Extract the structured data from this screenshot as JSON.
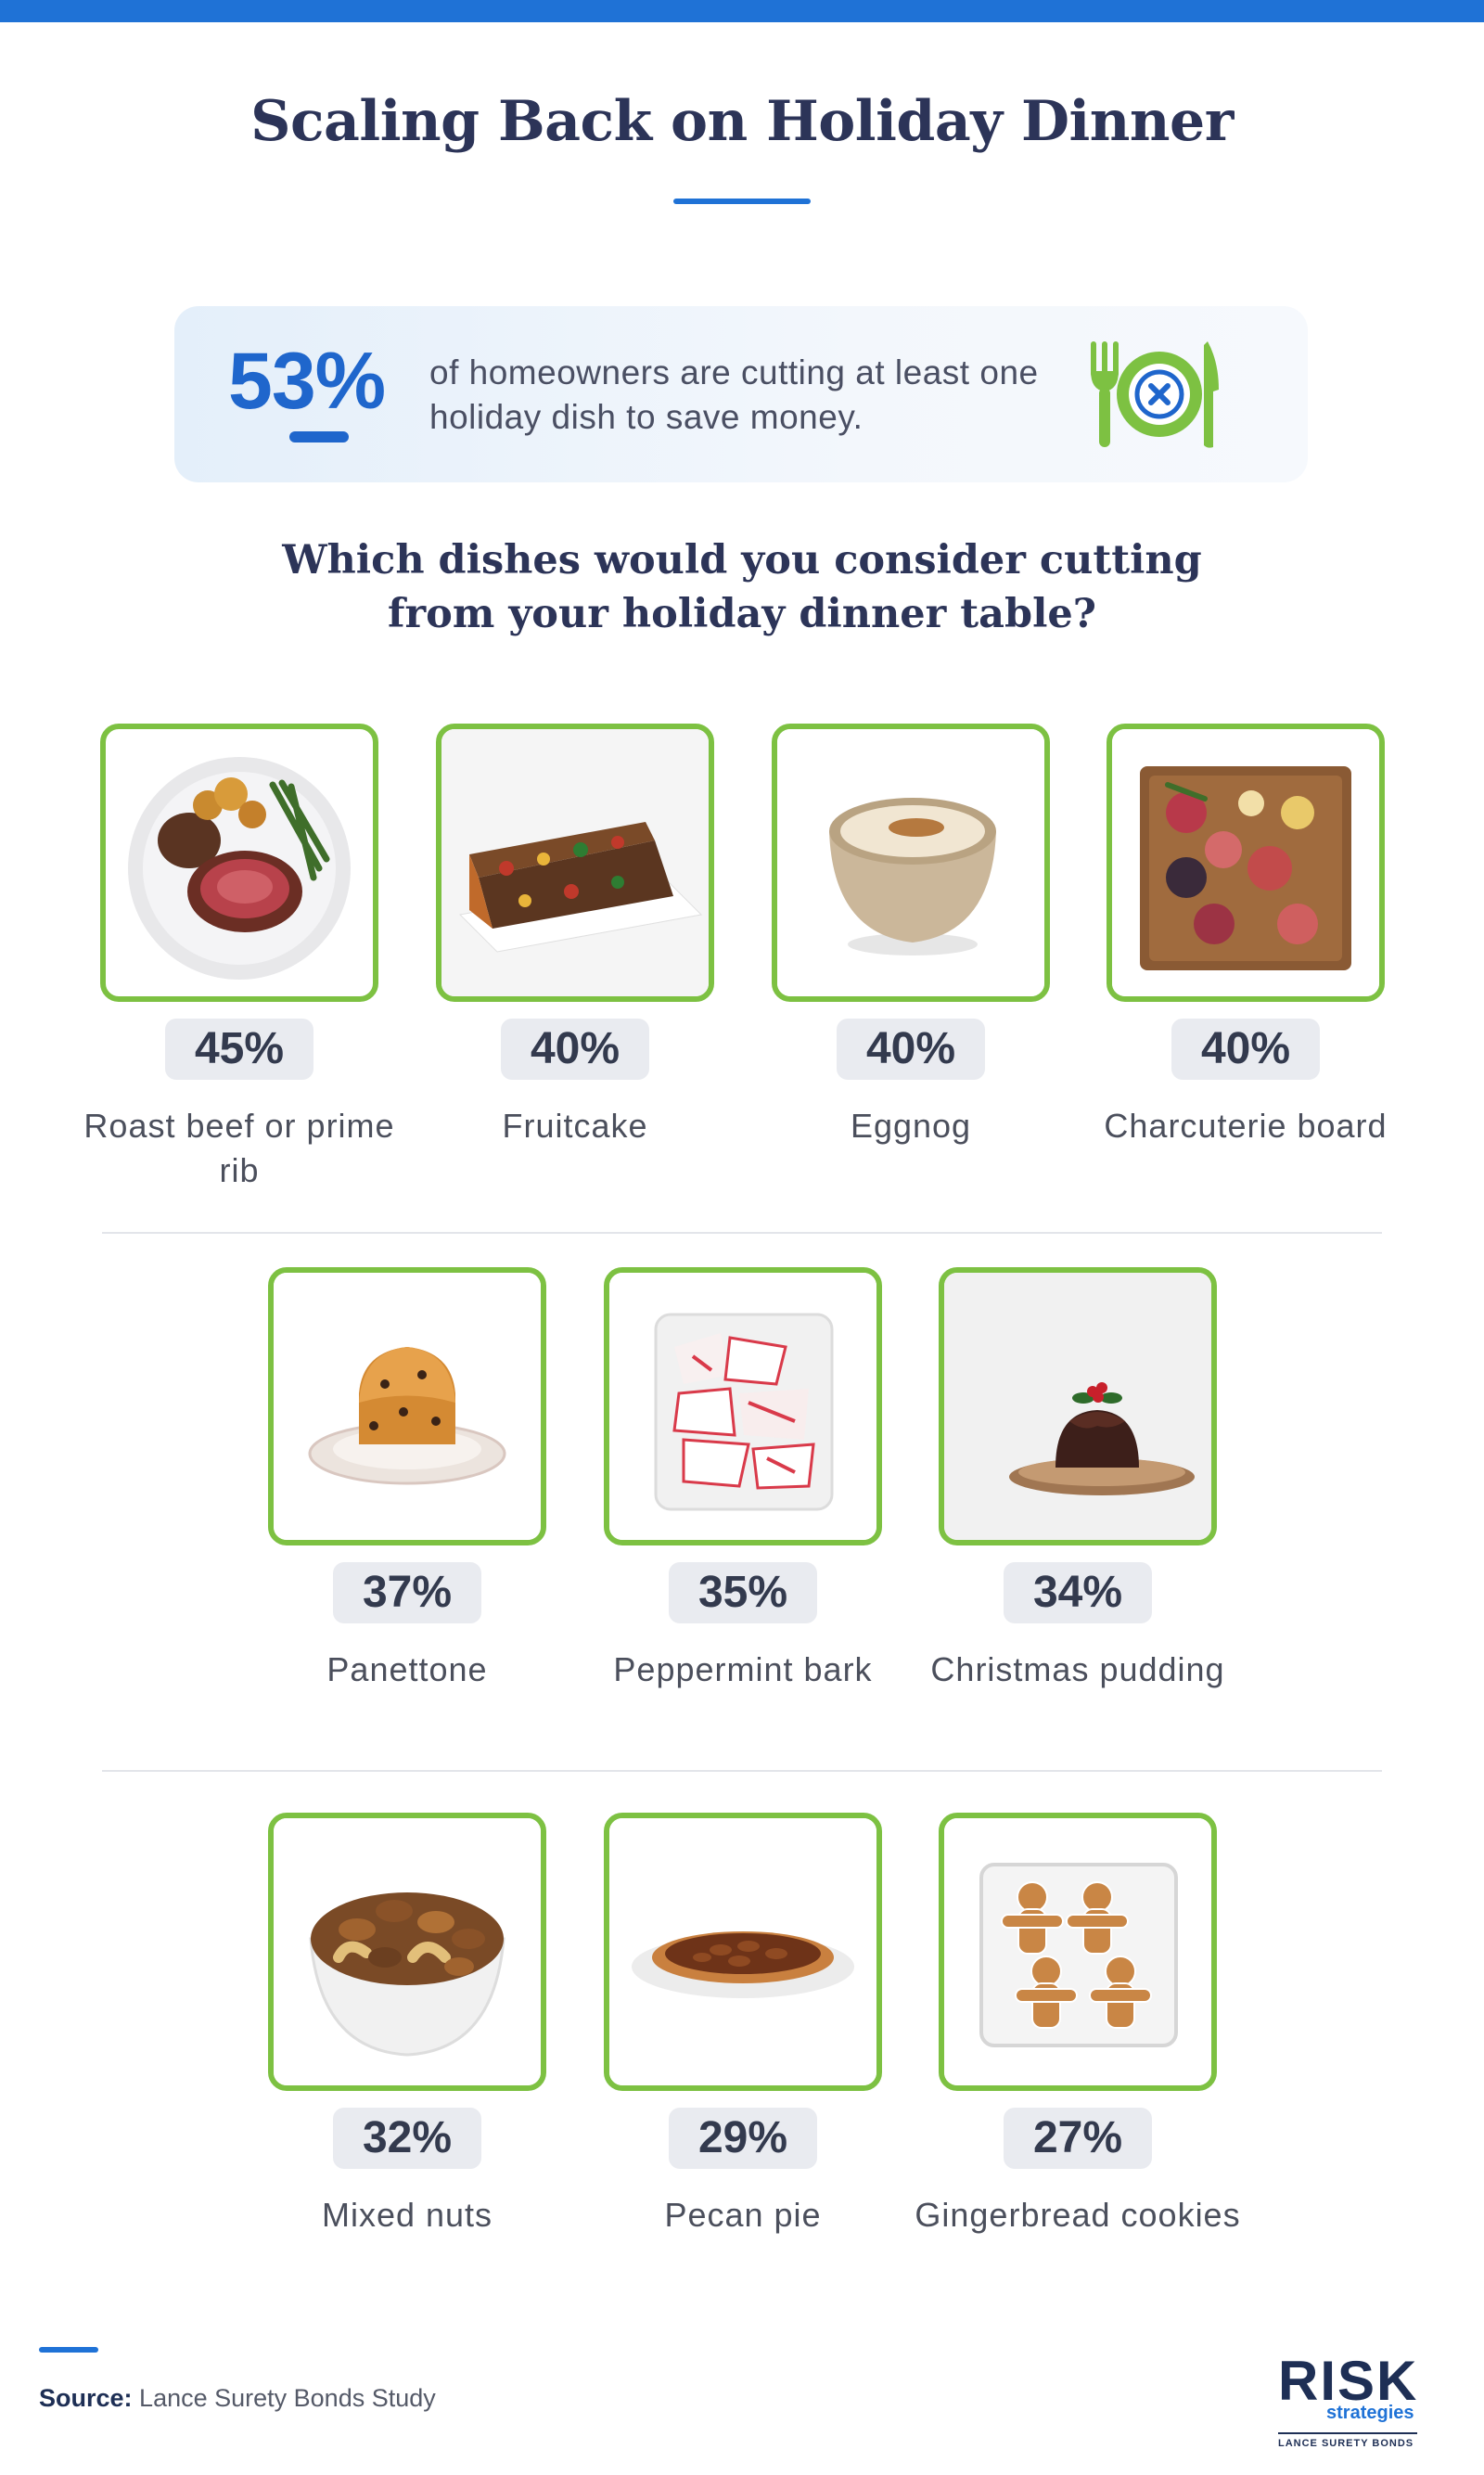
{
  "title": "Scaling Back on Holiday Dinner",
  "stat": {
    "percent": "53%",
    "text": "of homeowners are cutting at least one holiday dish to save money.",
    "icon": "plate-with-x-icon"
  },
  "question": "Which dishes would you consider cutting from your holiday dinner table?",
  "dishes": [
    {
      "name": "Roast beef or prime rib",
      "percent": "45%",
      "icon": "roast-beef-image"
    },
    {
      "name": "Fruitcake",
      "percent": "40%",
      "icon": "fruitcake-image"
    },
    {
      "name": "Eggnog",
      "percent": "40%",
      "icon": "eggnog-image"
    },
    {
      "name": "Charcuterie board",
      "percent": "40%",
      "icon": "charcuterie-image"
    },
    {
      "name": "Panettone",
      "percent": "37%",
      "icon": "panettone-image"
    },
    {
      "name": "Peppermint bark",
      "percent": "35%",
      "icon": "peppermint-bark-image"
    },
    {
      "name": "Christmas pudding",
      "percent": "34%",
      "icon": "christmas-pudding-image"
    },
    {
      "name": "Mixed nuts",
      "percent": "32%",
      "icon": "mixed-nuts-image"
    },
    {
      "name": "Pecan pie",
      "percent": "29%",
      "icon": "pecan-pie-image"
    },
    {
      "name": "Gingerbread cookies",
      "percent": "27%",
      "icon": "gingerbread-cookies-image"
    }
  ],
  "source": {
    "label": "Source:",
    "text": "Lance Surety Bonds Study"
  },
  "logo": {
    "main": "RISK",
    "sub": "strategies",
    "footer": "LANCE SURETY BONDS"
  },
  "colors": {
    "accent": "#1f72d6",
    "card_border": "#7dc142",
    "title": "#2c3458"
  }
}
